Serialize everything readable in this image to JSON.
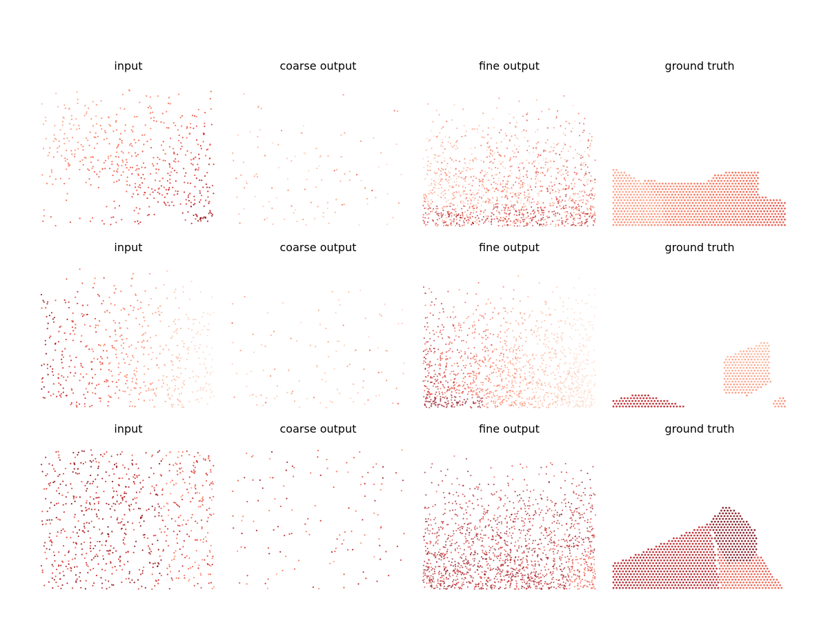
{
  "figure": {
    "colormap": [
      "#fff5f0",
      "#fcbba1",
      "#fb6a4a",
      "#cb181d",
      "#67000d"
    ],
    "rows": [
      {
        "panels": [
          {
            "title": "input",
            "kind": "sparse",
            "pattern": "rise_right",
            "n": 520,
            "seed": 11
          },
          {
            "title": "coarse output",
            "kind": "coarse",
            "pattern": "uniform_light",
            "n": 110,
            "seed": 12
          },
          {
            "title": "fine output",
            "kind": "fine",
            "pattern": "dense_bottom",
            "n": 1400,
            "seed": 13
          },
          {
            "title": "ground truth",
            "kind": "truth",
            "pattern": "truth_1",
            "seed": 14
          }
        ]
      },
      {
        "panels": [
          {
            "title": "input",
            "kind": "sparse",
            "pattern": "dark_left",
            "n": 560,
            "seed": 21
          },
          {
            "title": "coarse output",
            "kind": "coarse",
            "pattern": "uniform_light",
            "n": 110,
            "seed": 22
          },
          {
            "title": "fine output",
            "kind": "fine",
            "pattern": "dense_bottom_light_right",
            "n": 1400,
            "seed": 23
          },
          {
            "title": "ground truth",
            "kind": "truth",
            "pattern": "truth_2",
            "seed": 24
          }
        ]
      },
      {
        "panels": [
          {
            "title": "input",
            "kind": "sparse",
            "pattern": "dark_mix",
            "n": 760,
            "seed": 31
          },
          {
            "title": "coarse output",
            "kind": "coarse",
            "pattern": "uniform_mid",
            "n": 130,
            "seed": 32
          },
          {
            "title": "fine output",
            "kind": "fine",
            "pattern": "dark_bottom_fan",
            "n": 1600,
            "seed": 33
          },
          {
            "title": "ground truth",
            "kind": "truth",
            "pattern": "truth_3",
            "seed": 34
          }
        ]
      }
    ]
  }
}
